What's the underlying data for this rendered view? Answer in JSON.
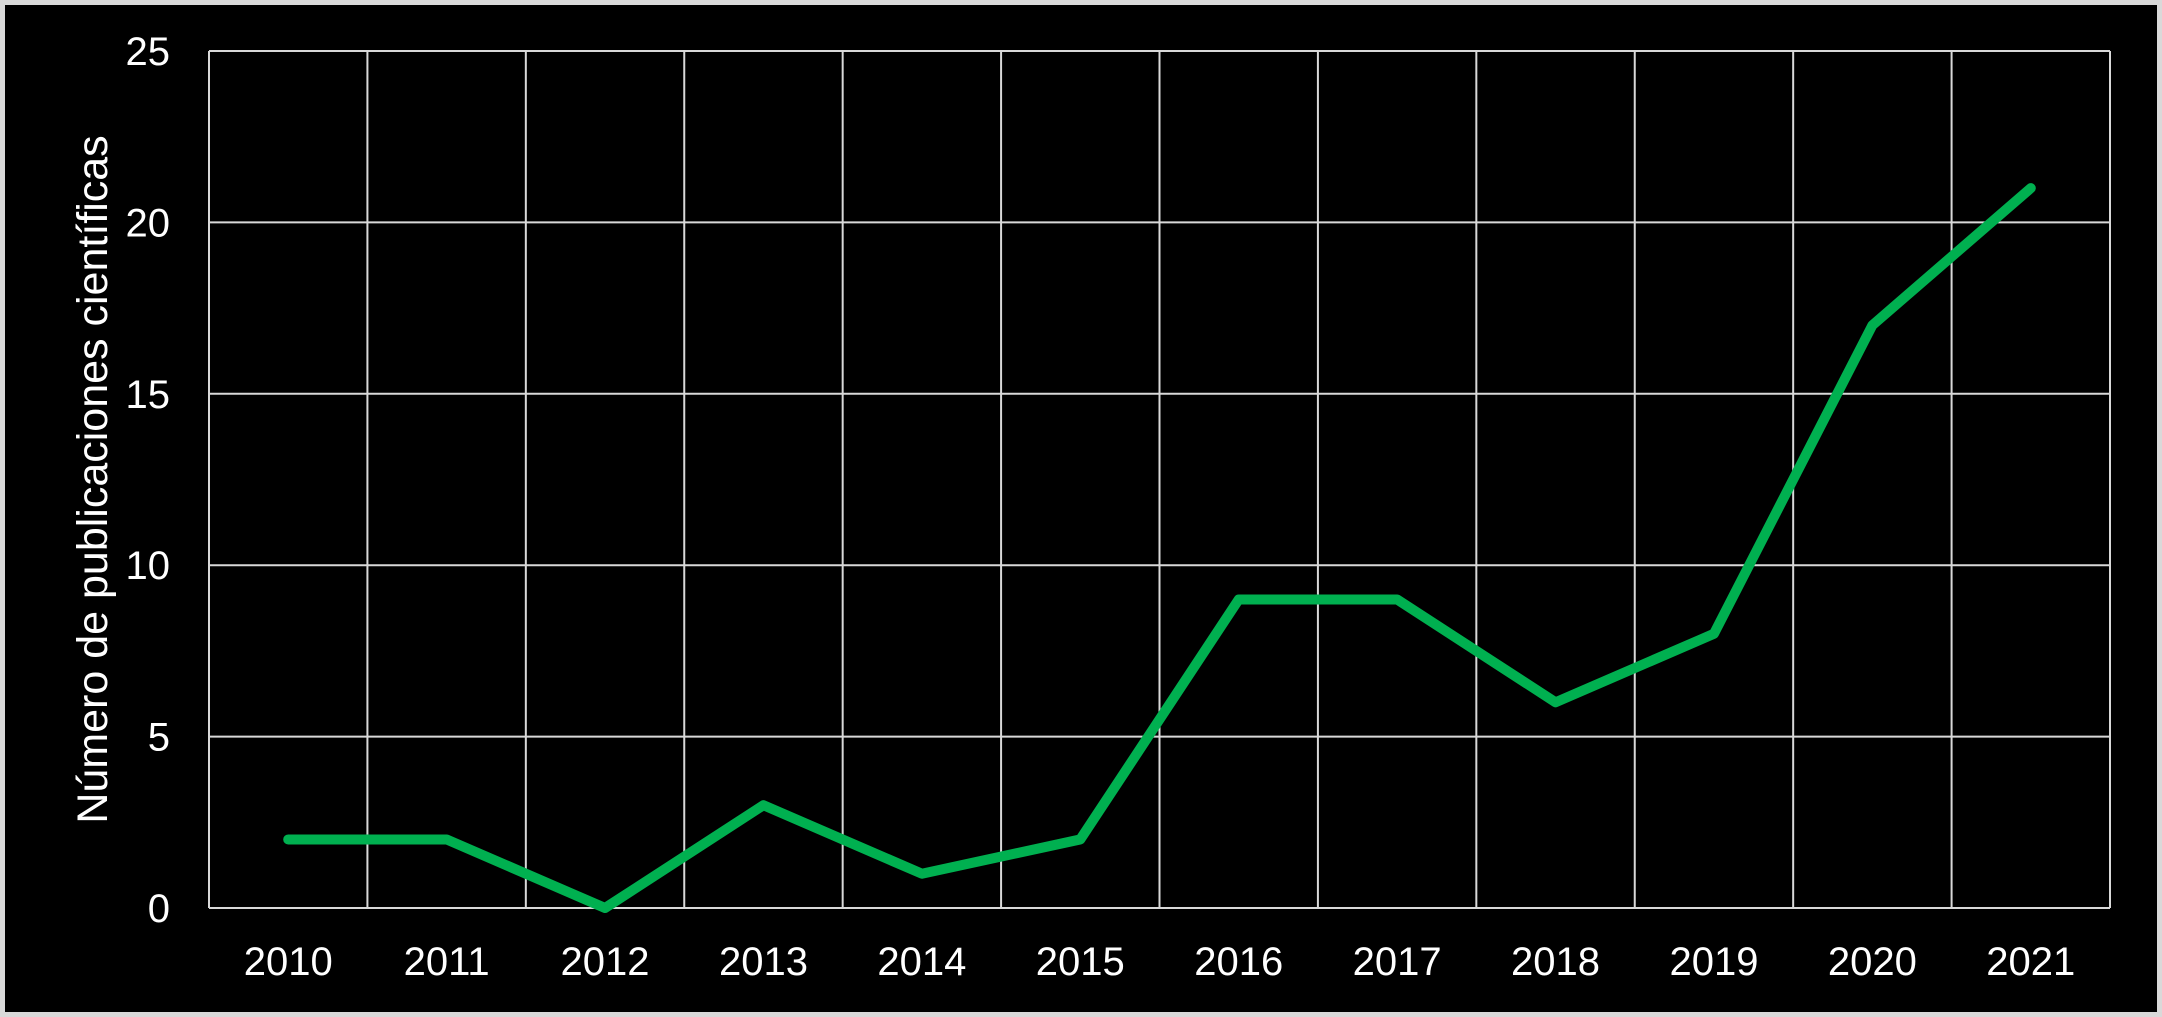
{
  "colors": {
    "background": "#000000",
    "frame_border": "#D9D9D9",
    "grid": "#D9D9D9",
    "axis": "#D9D9D9",
    "text": "#FFFFFF",
    "series": "#00B050"
  },
  "chart_data": {
    "type": "line",
    "title": "",
    "xlabel": "",
    "ylabel": "Número de publicaciones científicas",
    "categories": [
      "2010",
      "2011",
      "2012",
      "2013",
      "2014",
      "2015",
      "2016",
      "2017",
      "2018",
      "2019",
      "2020",
      "2021"
    ],
    "series": [
      {
        "name": "Número de publicaciones científicas",
        "values": [
          2,
          2,
          0,
          3,
          1,
          2,
          9,
          9,
          6,
          8,
          17,
          21
        ]
      }
    ],
    "ylim": [
      0,
      25
    ],
    "yticks": [
      0,
      5,
      10,
      15,
      20,
      25
    ],
    "grid": true,
    "category_axis_style": "between-ticks",
    "legend_position": "none"
  }
}
